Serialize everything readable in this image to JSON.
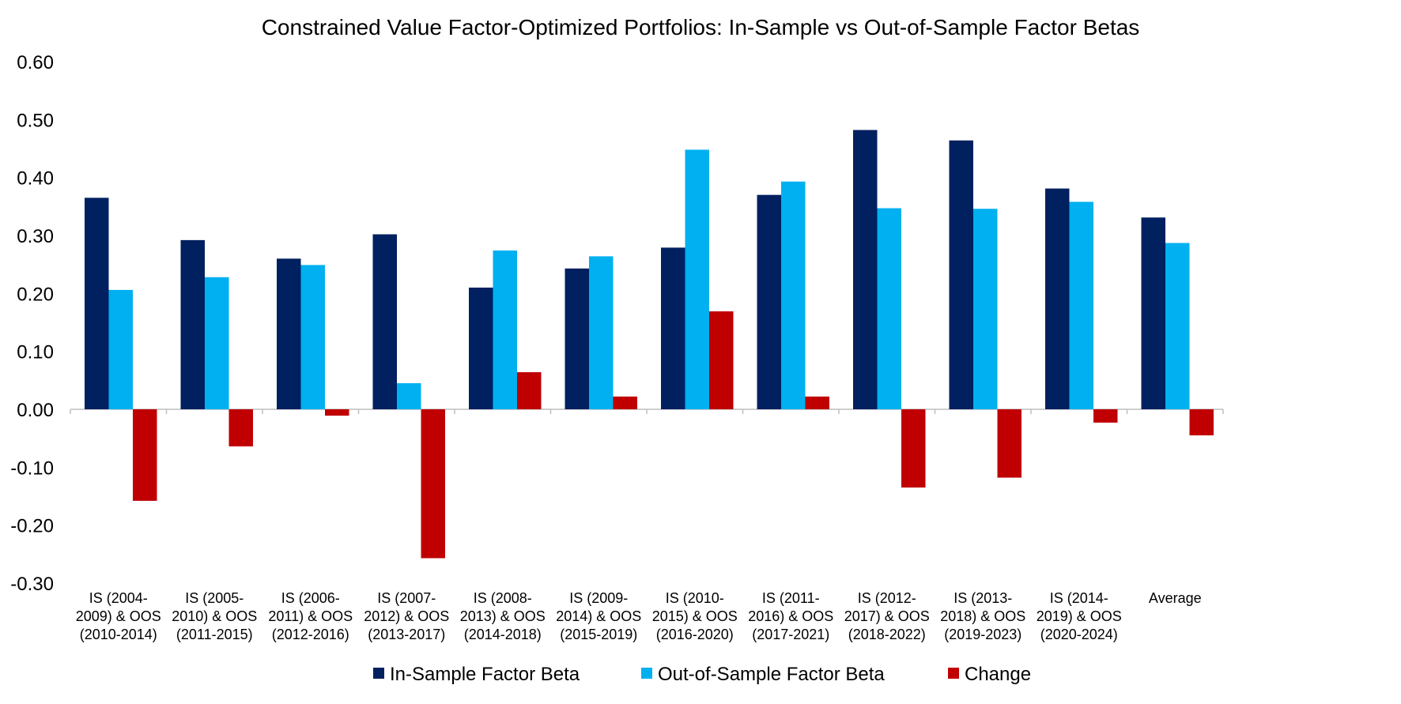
{
  "chart_data": {
    "type": "bar",
    "title": "Constrained Value Factor-Optimized Portfolios: In-Sample vs Out-of-Sample Factor Betas",
    "xlabel": "",
    "ylabel": "",
    "ylim": [
      -0.3,
      0.6
    ],
    "yticks": [
      "0.60",
      "0.50",
      "0.40",
      "0.30",
      "0.20",
      "0.10",
      "0.00",
      "-0.10",
      "-0.20",
      "-0.30"
    ],
    "legend_position": "bottom",
    "categories": [
      [
        "IS (2004-",
        "2009) & OOS",
        "(2010-2014)"
      ],
      [
        "IS (2005-",
        "2010) & OOS",
        "(2011-2015)"
      ],
      [
        "IS (2006-",
        "2011) & OOS",
        "(2012-2016)"
      ],
      [
        "IS (2007-",
        "2012) & OOS",
        "(2013-2017)"
      ],
      [
        "IS (2008-",
        "2013) & OOS",
        "(2014-2018)"
      ],
      [
        "IS (2009-",
        "2014) & OOS",
        "(2015-2019)"
      ],
      [
        "IS (2010-",
        "2015) & OOS",
        "(2016-2020)"
      ],
      [
        "IS (2011-",
        "2016) & OOS",
        "(2017-2021)"
      ],
      [
        "IS (2012-",
        "2017) & OOS",
        "(2018-2022)"
      ],
      [
        "IS (2013-",
        "2018) & OOS",
        "(2019-2023)"
      ],
      [
        "IS (2014-",
        "2019) & OOS",
        "(2020-2024)"
      ],
      [
        "Average"
      ]
    ],
    "series": [
      {
        "name": "In-Sample Factor Beta",
        "color": "#002060",
        "values": [
          0.365,
          0.292,
          0.26,
          0.302,
          0.21,
          0.243,
          0.279,
          0.37,
          0.482,
          0.464,
          0.381,
          0.331
        ]
      },
      {
        "name": "Out-of-Sample Factor Beta",
        "color": "#00B0F0",
        "values": [
          0.206,
          0.228,
          0.249,
          0.045,
          0.274,
          0.264,
          0.448,
          0.393,
          0.347,
          0.346,
          0.358,
          0.287
        ]
      },
      {
        "name": "Change",
        "color": "#C00000",
        "values": [
          -0.158,
          -0.064,
          -0.011,
          -0.257,
          0.064,
          0.022,
          0.169,
          0.022,
          -0.135,
          -0.118,
          -0.023,
          -0.045
        ]
      }
    ]
  }
}
